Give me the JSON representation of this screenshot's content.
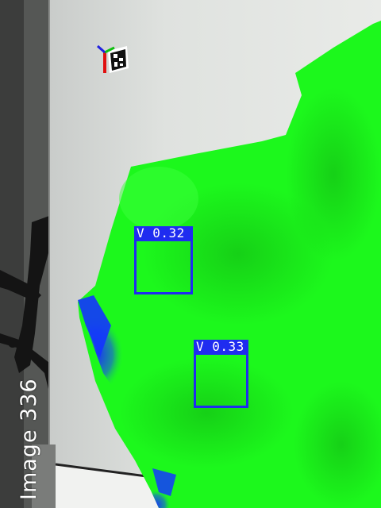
{
  "caption": "Image 336",
  "detections": [
    {
      "label": "V 0.32"
    },
    {
      "label": "V 0.33"
    }
  ],
  "colors": {
    "mesh_green": "#1bff1b",
    "mesh_blue": "#1430ff",
    "detection_box": "#1f2cf0",
    "wall": "#dfe3e0"
  }
}
